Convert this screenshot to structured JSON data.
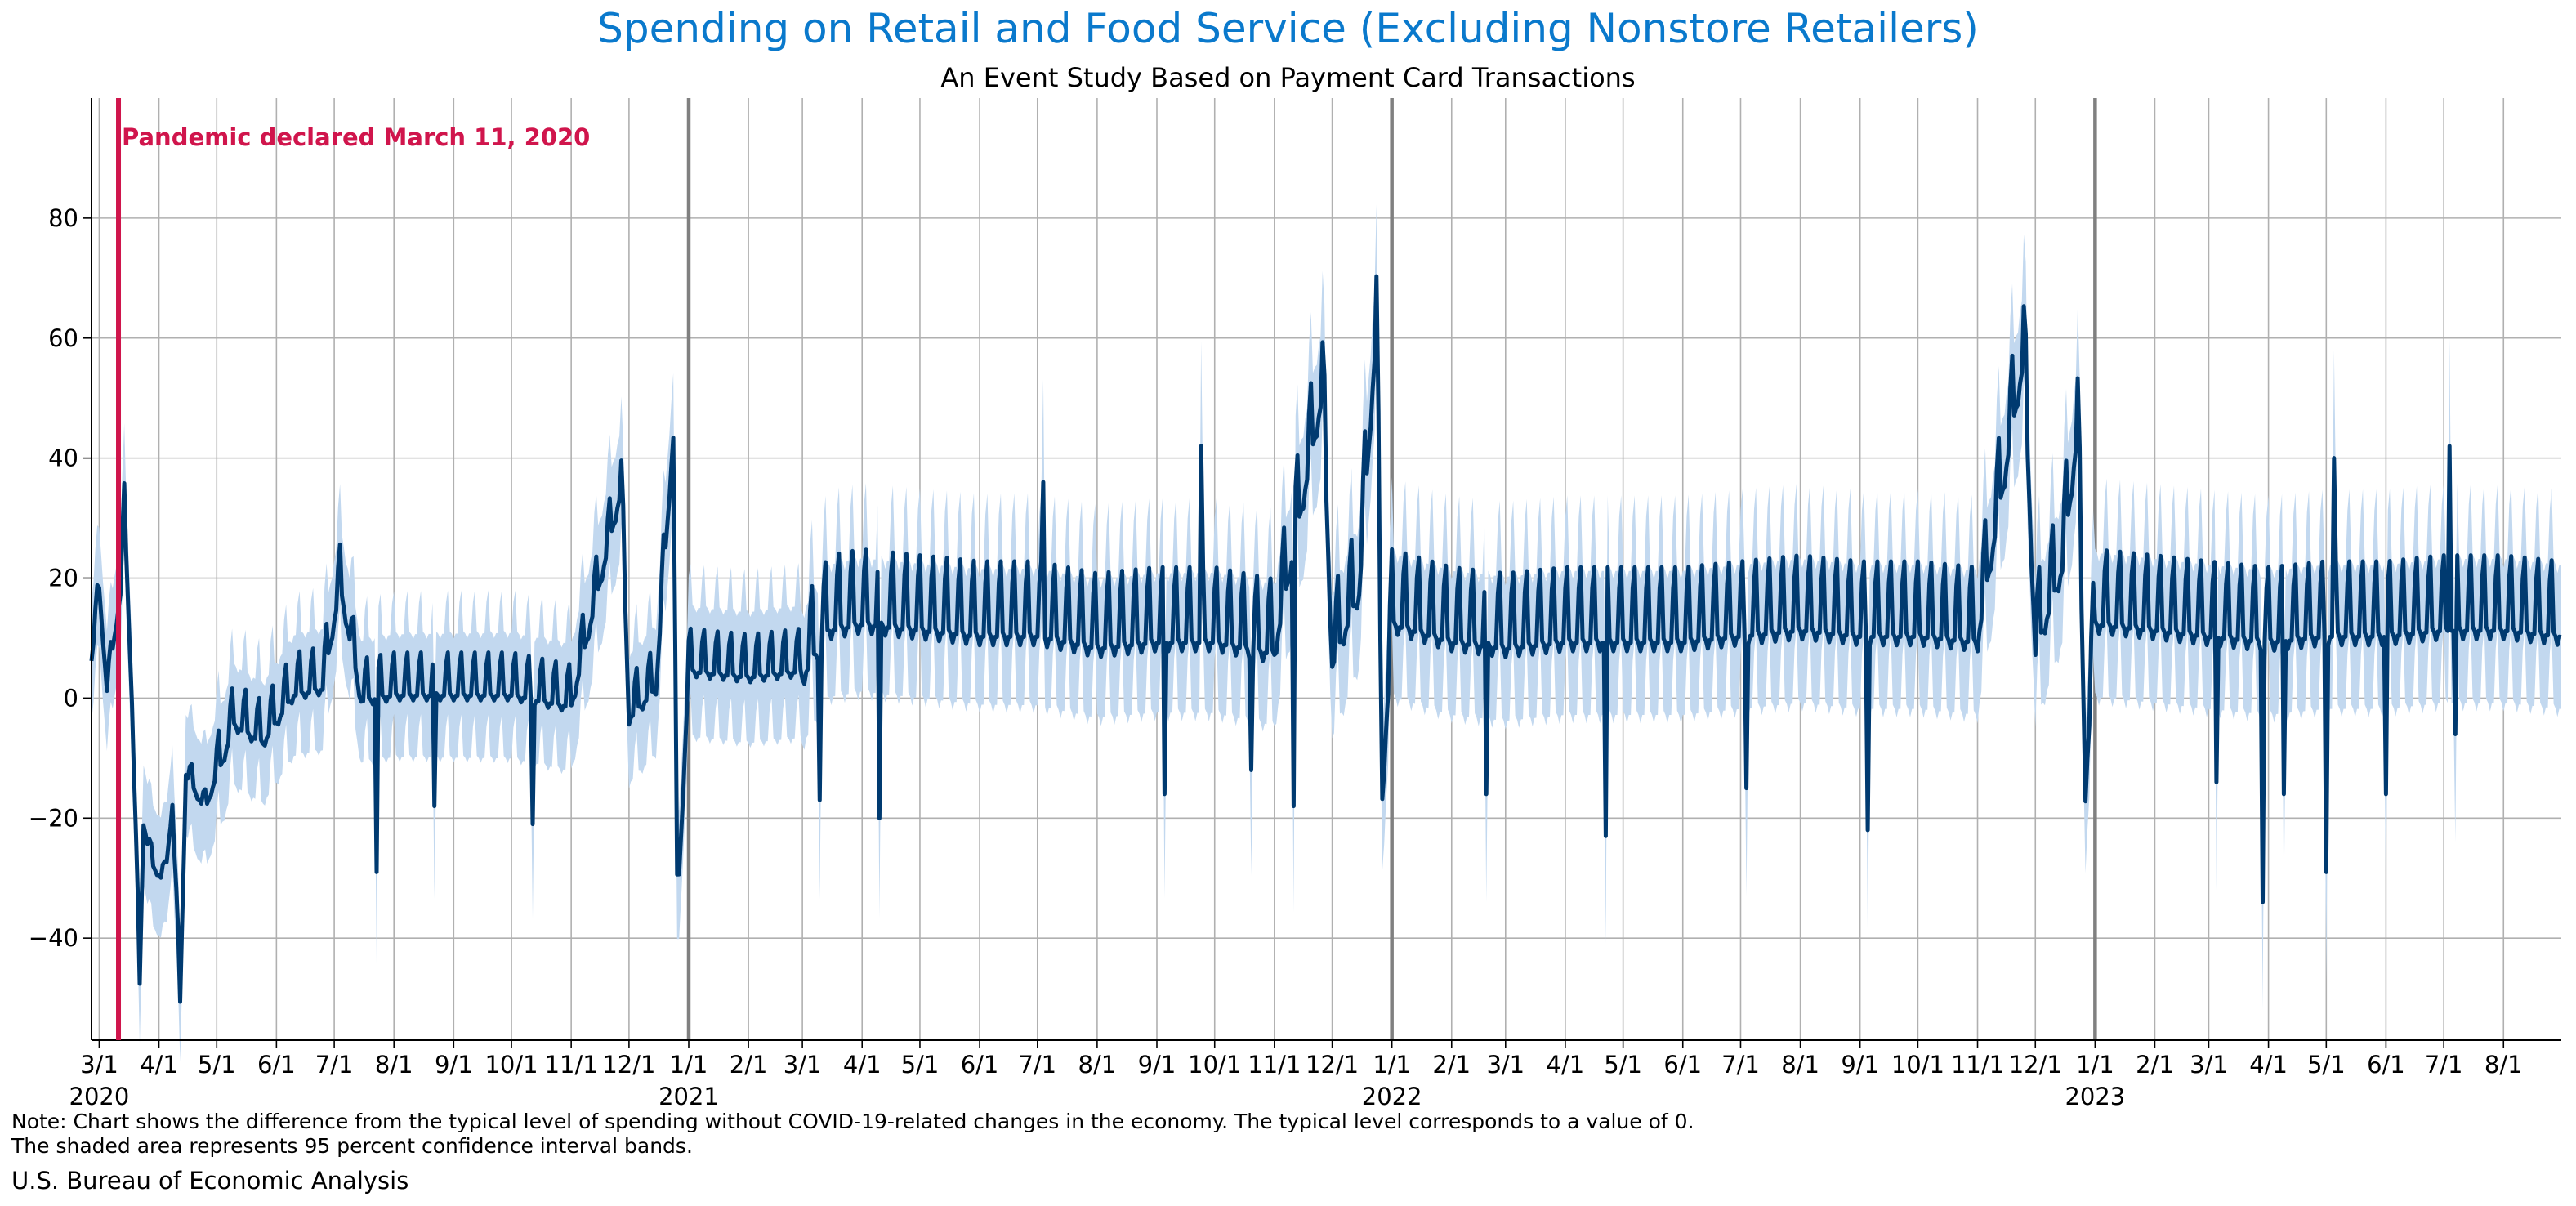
{
  "chart_data": {
    "type": "line",
    "title": "Spending on Retail and Food Service (Excluding Nonstore Retailers)",
    "subtitle": "An Event Study Based on Payment Card Transactions",
    "xlabel": "",
    "ylabel": "",
    "x_range": [
      "2020-02-26",
      "2023-08-31"
    ],
    "ylim": [
      -57,
      100
    ],
    "y_ticks": [
      -40,
      -20,
      0,
      20,
      40,
      60,
      80
    ],
    "grid": true,
    "series": [
      {
        "name": "",
        "kind": "estimate",
        "color": "#003a70"
      },
      {
        "name": "",
        "kind": "95% confidence band",
        "color": "#c2d8ef"
      }
    ],
    "year_labels": [
      {
        "date": "2020-03-01",
        "label": "2020"
      },
      {
        "date": "2021-01-01",
        "label": "2021"
      },
      {
        "date": "2022-01-01",
        "label": "2022"
      },
      {
        "date": "2023-01-01",
        "label": "2023"
      }
    ],
    "annotation": {
      "date": "2020-03-11",
      "label": "Pandemic declared March 11, 2020",
      "color": "#d0154c"
    },
    "anchors": [
      {
        "x": "2020-02-26",
        "y": 7
      },
      {
        "x": "2020-03-01",
        "y": 19
      },
      {
        "x": "2020-03-05",
        "y": 2
      },
      {
        "x": "2020-03-12",
        "y": 18
      },
      {
        "x": "2020-03-14",
        "y": 33
      },
      {
        "x": "2020-03-18",
        "y": 0
      },
      {
        "x": "2020-03-22",
        "y": -47
      },
      {
        "x": "2020-03-24",
        "y": -20
      },
      {
        "x": "2020-03-28",
        "y": -27
      },
      {
        "x": "2020-04-04",
        "y": -30
      },
      {
        "x": "2020-04-08",
        "y": -17
      },
      {
        "x": "2020-04-12",
        "y": -50
      },
      {
        "x": "2020-04-15",
        "y": -12
      },
      {
        "x": "2020-04-25",
        "y": -18
      },
      {
        "x": "2020-05-10",
        "y": -3
      },
      {
        "x": "2020-05-25",
        "y": -6
      },
      {
        "x": "2020-06-10",
        "y": 2
      },
      {
        "x": "2020-06-25",
        "y": 3
      },
      {
        "x": "2020-07-04",
        "y": 20
      },
      {
        "x": "2020-07-15",
        "y": 1
      },
      {
        "x": "2020-08-01",
        "y": 2
      },
      {
        "x": "2020-09-01",
        "y": 2
      },
      {
        "x": "2020-10-01",
        "y": 2
      },
      {
        "x": "2020-11-01",
        "y": 0
      },
      {
        "x": "2020-11-27",
        "y": 36
      },
      {
        "x": "2020-12-01",
        "y": -2
      },
      {
        "x": "2020-12-15",
        "y": 3
      },
      {
        "x": "2020-12-24",
        "y": 45
      },
      {
        "x": "2020-12-26",
        "y": -35
      },
      {
        "x": "2021-01-01",
        "y": 6
      },
      {
        "x": "2021-02-01",
        "y": 5
      },
      {
        "x": "2021-03-01",
        "y": 6
      },
      {
        "x": "2021-03-15",
        "y": 14
      },
      {
        "x": "2021-04-01",
        "y": 15
      },
      {
        "x": "2021-05-01",
        "y": 14
      },
      {
        "x": "2021-06-01",
        "y": 13
      },
      {
        "x": "2021-07-01",
        "y": 13
      },
      {
        "x": "2021-08-01",
        "y": 11
      },
      {
        "x": "2021-09-01",
        "y": 12
      },
      {
        "x": "2021-10-01",
        "y": 12
      },
      {
        "x": "2021-11-01",
        "y": 10
      },
      {
        "x": "2021-11-26",
        "y": 53
      },
      {
        "x": "2021-12-01",
        "y": 8
      },
      {
        "x": "2021-12-15",
        "y": 20
      },
      {
        "x": "2021-12-24",
        "y": 64
      },
      {
        "x": "2021-12-27",
        "y": -14
      },
      {
        "x": "2022-01-01",
        "y": 15
      },
      {
        "x": "2022-02-01",
        "y": 12
      },
      {
        "x": "2022-03-01",
        "y": 11
      },
      {
        "x": "2022-04-01",
        "y": 12
      },
      {
        "x": "2022-05-01",
        "y": 12
      },
      {
        "x": "2022-06-01",
        "y": 12
      },
      {
        "x": "2022-07-01",
        "y": 13
      },
      {
        "x": "2022-08-01",
        "y": 14
      },
      {
        "x": "2022-09-01",
        "y": 13
      },
      {
        "x": "2022-10-01",
        "y": 13
      },
      {
        "x": "2022-11-01",
        "y": 12
      },
      {
        "x": "2022-11-25",
        "y": 59
      },
      {
        "x": "2022-12-01",
        "y": 10
      },
      {
        "x": "2022-12-15",
        "y": 24
      },
      {
        "x": "2022-12-23",
        "y": 47
      },
      {
        "x": "2022-12-27",
        "y": -13
      },
      {
        "x": "2023-01-01",
        "y": 15
      },
      {
        "x": "2023-02-01",
        "y": 14
      },
      {
        "x": "2023-03-01",
        "y": 13
      },
      {
        "x": "2023-04-01",
        "y": 12
      },
      {
        "x": "2023-05-01",
        "y": 13
      },
      {
        "x": "2023-06-01",
        "y": 13
      },
      {
        "x": "2023-07-01",
        "y": 14
      },
      {
        "x": "2023-08-01",
        "y": 14
      },
      {
        "x": "2023-08-31",
        "y": 13
      }
    ],
    "spikes": [
      {
        "x": "2020-07-23",
        "y": -29
      },
      {
        "x": "2020-08-22",
        "y": -18
      },
      {
        "x": "2020-10-12",
        "y": -21
      },
      {
        "x": "2021-03-10",
        "y": -17
      },
      {
        "x": "2021-04-10",
        "y": -20
      },
      {
        "x": "2021-07-04",
        "y": 36
      },
      {
        "x": "2021-09-05",
        "y": -16
      },
      {
        "x": "2021-09-24",
        "y": 42
      },
      {
        "x": "2021-10-20",
        "y": -12
      },
      {
        "x": "2021-11-11",
        "y": -18
      },
      {
        "x": "2022-02-19",
        "y": -16
      },
      {
        "x": "2022-04-22",
        "y": -23
      },
      {
        "x": "2022-07-04",
        "y": -15
      },
      {
        "x": "2022-09-05",
        "y": -22
      },
      {
        "x": "2023-03-05",
        "y": -14
      },
      {
        "x": "2023-03-29",
        "y": -34
      },
      {
        "x": "2023-04-09",
        "y": -16
      },
      {
        "x": "2023-05-01",
        "y": -29
      },
      {
        "x": "2023-05-05",
        "y": 40
      },
      {
        "x": "2023-06-01",
        "y": -16
      },
      {
        "x": "2023-07-04",
        "y": 42
      },
      {
        "x": "2023-07-07",
        "y": -6
      }
    ],
    "band_halfwidth": [
      {
        "x": "2020-02-26",
        "hw": 10
      },
      {
        "x": "2020-06-01",
        "hw": 10
      },
      {
        "x": "2021-03-01",
        "hw": 11
      },
      {
        "x": "2022-01-01",
        "hw": 12
      },
      {
        "x": "2023-08-31",
        "hw": 12
      }
    ]
  },
  "axis": {
    "y_tick_labels": [
      "−40",
      "−20",
      "0",
      "20",
      "40",
      "60",
      "80"
    ],
    "x_tick_labels": [
      {
        "date": "2020-03-01",
        "label": "3/1"
      },
      {
        "date": "2020-04-01",
        "label": "4/1"
      },
      {
        "date": "2020-05-01",
        "label": "5/1"
      },
      {
        "date": "2020-06-01",
        "label": "6/1"
      },
      {
        "date": "2020-07-01",
        "label": "7/1"
      },
      {
        "date": "2020-08-01",
        "label": "8/1"
      },
      {
        "date": "2020-09-01",
        "label": "9/1"
      },
      {
        "date": "2020-10-01",
        "label": "10/1"
      },
      {
        "date": "2020-11-01",
        "label": "11/1"
      },
      {
        "date": "2020-12-01",
        "label": "12/1"
      },
      {
        "date": "2021-01-01",
        "label": "1/1"
      },
      {
        "date": "2021-02-01",
        "label": "2/1"
      },
      {
        "date": "2021-03-01",
        "label": "3/1"
      },
      {
        "date": "2021-04-01",
        "label": "4/1"
      },
      {
        "date": "2021-05-01",
        "label": "5/1"
      },
      {
        "date": "2021-06-01",
        "label": "6/1"
      },
      {
        "date": "2021-07-01",
        "label": "7/1"
      },
      {
        "date": "2021-08-01",
        "label": "8/1"
      },
      {
        "date": "2021-09-01",
        "label": "9/1"
      },
      {
        "date": "2021-10-01",
        "label": "10/1"
      },
      {
        "date": "2021-11-01",
        "label": "11/1"
      },
      {
        "date": "2021-12-01",
        "label": "12/1"
      },
      {
        "date": "2022-01-01",
        "label": "1/1"
      },
      {
        "date": "2022-02-01",
        "label": "2/1"
      },
      {
        "date": "2022-03-01",
        "label": "3/1"
      },
      {
        "date": "2022-04-01",
        "label": "4/1"
      },
      {
        "date": "2022-05-01",
        "label": "5/1"
      },
      {
        "date": "2022-06-01",
        "label": "6/1"
      },
      {
        "date": "2022-07-01",
        "label": "7/1"
      },
      {
        "date": "2022-08-01",
        "label": "8/1"
      },
      {
        "date": "2022-09-01",
        "label": "9/1"
      },
      {
        "date": "2022-10-01",
        "label": "10/1"
      },
      {
        "date": "2022-11-01",
        "label": "11/1"
      },
      {
        "date": "2022-12-01",
        "label": "12/1"
      },
      {
        "date": "2023-01-01",
        "label": "1/1"
      },
      {
        "date": "2023-02-01",
        "label": "2/1"
      },
      {
        "date": "2023-03-01",
        "label": "3/1"
      },
      {
        "date": "2023-04-01",
        "label": "4/1"
      },
      {
        "date": "2023-05-01",
        "label": "5/1"
      },
      {
        "date": "2023-06-01",
        "label": "6/1"
      },
      {
        "date": "2023-07-01",
        "label": "7/1"
      },
      {
        "date": "2023-08-01",
        "label": "8/1"
      }
    ]
  },
  "footer": {
    "note_line1": "Note: Chart shows the difference from the typical level of spending without COVID-19-related changes in the economy. The typical level corresponds to a value of 0.",
    "note_line2": "The shaded area represents 95 percent confidence interval bands.",
    "source": "U.S. Bureau of Economic Analysis"
  },
  "colors": {
    "title": "#0a79cc",
    "line": "#003a70",
    "band": "#c2d8ef",
    "grid": "#b0b0b0",
    "year_line": "#808080",
    "annotation": "#d0154c"
  }
}
